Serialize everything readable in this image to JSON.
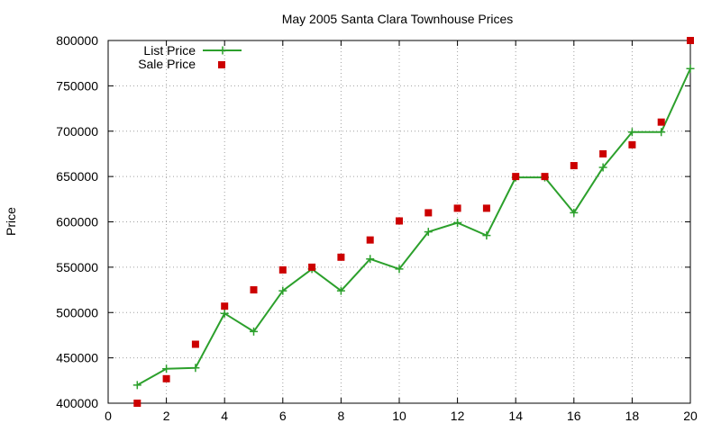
{
  "chart_data": {
    "type": "line",
    "title": "May 2005 Santa Clara Townhouse Prices",
    "xlabel": "",
    "ylabel": "Price",
    "xlim": [
      0,
      20
    ],
    "ylim": [
      400000,
      800000
    ],
    "x_ticks": [
      "0",
      "2",
      "4",
      "6",
      "8",
      "10",
      "12",
      "14",
      "16",
      "18",
      "20"
    ],
    "y_ticks": [
      "400000",
      "450000",
      "500000",
      "550000",
      "600000",
      "650000",
      "700000",
      "750000",
      "800000"
    ],
    "grid": true,
    "legend_position": "top-left",
    "series": [
      {
        "name": "List Price",
        "style": "line-with-plus-markers",
        "color": "#2ca02c",
        "x": [
          1,
          2,
          3,
          4,
          5,
          6,
          7,
          8,
          9,
          10,
          11,
          12,
          13,
          14,
          15,
          16,
          17,
          18,
          19,
          20
        ],
        "values": [
          420000,
          438000,
          439000,
          499000,
          479000,
          524000,
          548000,
          524000,
          559000,
          548000,
          589000,
          599000,
          585000,
          649000,
          649000,
          610000,
          660000,
          699000,
          699000,
          769000
        ]
      },
      {
        "name": "Sale Price",
        "style": "square-markers",
        "color": "#cc0000",
        "x": [
          1,
          2,
          3,
          4,
          5,
          6,
          7,
          8,
          9,
          10,
          11,
          12,
          13,
          14,
          15,
          16,
          17,
          18,
          19,
          20
        ],
        "values": [
          400000,
          427000,
          465000,
          507000,
          525000,
          547000,
          550000,
          561000,
          580000,
          601000,
          610000,
          615000,
          615000,
          650000,
          650000,
          662000,
          675000,
          685000,
          710000,
          800000
        ]
      }
    ]
  }
}
